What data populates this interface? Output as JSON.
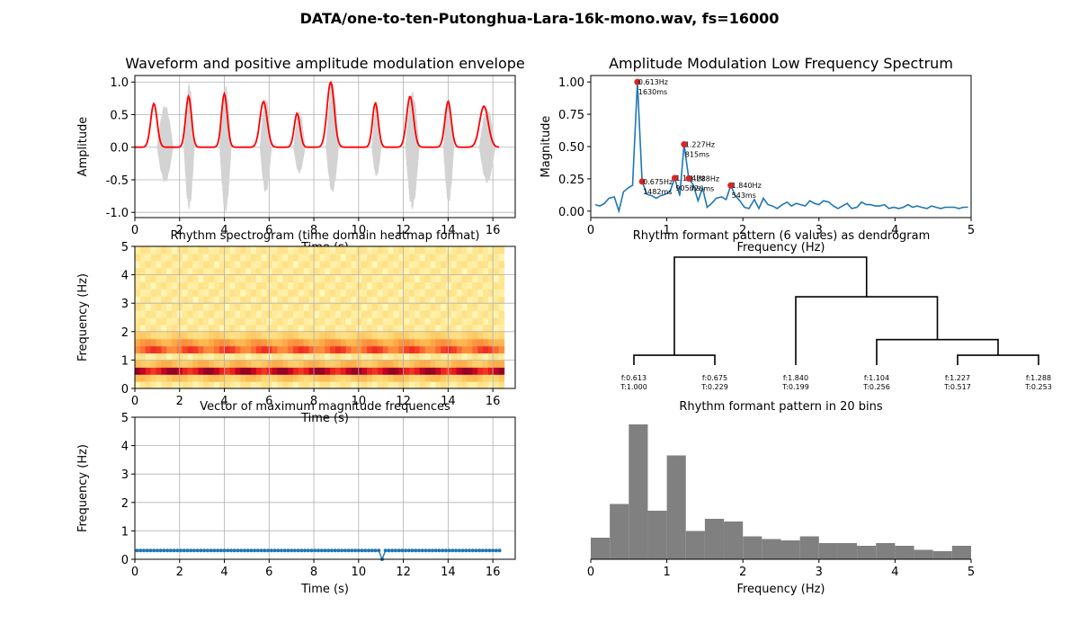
{
  "suptitle": "DATA/one-to-ten-Putonghua-Lara-16k-mono.wav, fs=16000",
  "chart_data": [
    {
      "id": "waveform",
      "type": "line",
      "title": "Waveform and positive amplitude modulation envelope",
      "xlabel": "Time (s)",
      "ylabel": "Amplitude",
      "xlim": [
        0,
        17
      ],
      "ylim": [
        -1.08,
        1.1
      ],
      "xticks": [
        0,
        2,
        4,
        6,
        8,
        10,
        12,
        14,
        16
      ],
      "yticks": [
        -1.0,
        -0.5,
        0.0,
        0.5,
        1.0
      ],
      "grid": true,
      "colors": {
        "waveform": "#d3d3d3",
        "envelope": "#ff0000"
      },
      "waveform_bursts": [
        {
          "start": 1.0,
          "end": 1.7,
          "pos": 0.65,
          "neg": -0.55
        },
        {
          "start": 2.2,
          "end": 2.65,
          "pos": 0.98,
          "neg": -0.95
        },
        {
          "start": 3.8,
          "end": 4.3,
          "pos": 0.95,
          "neg": -1.0
        },
        {
          "start": 5.6,
          "end": 6.1,
          "pos": 0.75,
          "neg": -0.7
        },
        {
          "start": 7.1,
          "end": 7.6,
          "pos": 0.55,
          "neg": -0.4
        },
        {
          "start": 8.55,
          "end": 9.1,
          "pos": 1.0,
          "neg": -0.7
        },
        {
          "start": 10.6,
          "end": 11.0,
          "pos": 0.65,
          "neg": -0.45
        },
        {
          "start": 12.1,
          "end": 12.7,
          "pos": 0.85,
          "neg": -0.95
        },
        {
          "start": 13.8,
          "end": 14.25,
          "pos": 0.75,
          "neg": -0.85
        },
        {
          "start": 15.4,
          "end": 16.1,
          "pos": 0.6,
          "neg": -0.55
        }
      ],
      "envelope_peaks": [
        {
          "t": 0.85,
          "amp": 0.67,
          "width": 0.22
        },
        {
          "t": 2.4,
          "amp": 0.78,
          "width": 0.2
        },
        {
          "t": 4.0,
          "amp": 0.82,
          "width": 0.2
        },
        {
          "t": 5.75,
          "amp": 0.7,
          "width": 0.25
        },
        {
          "t": 7.25,
          "amp": 0.52,
          "width": 0.2
        },
        {
          "t": 8.75,
          "amp": 1.0,
          "width": 0.25
        },
        {
          "t": 10.75,
          "amp": 0.68,
          "width": 0.2
        },
        {
          "t": 12.3,
          "amp": 0.78,
          "width": 0.24
        },
        {
          "t": 14.0,
          "amp": 0.7,
          "width": 0.22
        },
        {
          "t": 15.6,
          "amp": 0.63,
          "width": 0.3
        }
      ],
      "envelope_range": [
        0.0,
        16.3
      ]
    },
    {
      "id": "am-spectrum",
      "type": "line",
      "title": "Amplitude Modulation Low Frequency Spectrum",
      "xlabel": "Frequency (Hz)",
      "ylabel": "Magnitude",
      "xlim": [
        0,
        5
      ],
      "ylim": [
        -0.05,
        1.05
      ],
      "xticks": [
        0,
        1,
        2,
        3,
        4,
        5
      ],
      "yticks": [
        0.0,
        0.25,
        0.5,
        0.75,
        1.0
      ],
      "grid": false,
      "line_color": "#1f77b4",
      "marker_color": "#d62728",
      "x": [
        0.06,
        0.12,
        0.18,
        0.24,
        0.31,
        0.37,
        0.43,
        0.49,
        0.55,
        0.613,
        0.675,
        0.74,
        0.8,
        0.86,
        0.92,
        0.98,
        1.04,
        1.104,
        1.17,
        1.227,
        1.288,
        1.35,
        1.41,
        1.47,
        1.53,
        1.59,
        1.65,
        1.72,
        1.78,
        1.84,
        1.9,
        1.96,
        2.02,
        2.08,
        2.15,
        2.21,
        2.27,
        2.33,
        2.39,
        2.45,
        2.52,
        2.58,
        2.64,
        2.7,
        2.76,
        2.82,
        2.88,
        2.94,
        3.0,
        3.06,
        3.13,
        3.19,
        3.25,
        3.31,
        3.37,
        3.43,
        3.5,
        3.56,
        3.62,
        3.68,
        3.74,
        3.8,
        3.86,
        3.92,
        3.98,
        4.05,
        4.11,
        4.17,
        4.23,
        4.29,
        4.35,
        4.42,
        4.48,
        4.54,
        4.6,
        4.66,
        4.72,
        4.78,
        4.84,
        4.9,
        4.96
      ],
      "y": [
        0.05,
        0.04,
        0.06,
        0.1,
        0.11,
        0.0,
        0.15,
        0.18,
        0.2,
        1.0,
        0.229,
        0.13,
        0.12,
        0.1,
        0.12,
        0.13,
        0.15,
        0.256,
        0.12,
        0.517,
        0.253,
        0.2,
        0.08,
        0.18,
        0.03,
        0.06,
        0.1,
        0.11,
        0.09,
        0.199,
        0.12,
        0.08,
        0.03,
        0.02,
        0.09,
        0.02,
        0.1,
        0.05,
        0.04,
        0.02,
        0.05,
        0.07,
        0.04,
        0.06,
        0.05,
        0.04,
        0.08,
        0.06,
        0.05,
        0.08,
        0.07,
        0.04,
        0.02,
        0.04,
        0.06,
        0.02,
        0.03,
        0.07,
        0.05,
        0.05,
        0.04,
        0.04,
        0.05,
        0.02,
        0.03,
        0.02,
        0.03,
        0.05,
        0.03,
        0.04,
        0.03,
        0.02,
        0.04,
        0.03,
        0.02,
        0.03,
        0.03,
        0.03,
        0.02,
        0.03,
        0.03
      ],
      "peaks": [
        {
          "f": 0.613,
          "mag": 1.0,
          "freq_label": "0.613Hz",
          "period_label": "1630ms",
          "lx": 0,
          "ly": 0
        },
        {
          "f": 1.227,
          "mag": 0.517,
          "freq_label": "1.227Hz",
          "period_label": "815ms",
          "lx": 0,
          "ly": 0
        },
        {
          "f": 0.675,
          "mag": 0.229,
          "freq_label": "0.675Hz",
          "period_label": "1482ms",
          "lx": 0,
          "ly": 0
        },
        {
          "f": 1.104,
          "mag": 0.256,
          "freq_label": "1.104Hz",
          "period_label": "905ms",
          "lx": 0,
          "ly": 0
        },
        {
          "f": 1.288,
          "mag": 0.253,
          "freq_label": "1.288Hz",
          "period_label": "776ms",
          "lx": 0,
          "ly": 0
        },
        {
          "f": 1.84,
          "mag": 0.199,
          "freq_label": "1.840Hz",
          "period_label": "543ms",
          "lx": 0,
          "ly": 0
        }
      ]
    },
    {
      "id": "rhythm-spectrogram",
      "type": "heatmap",
      "title": "Rhythm spectrogram (time domain heatmap format)",
      "xlabel": "Time (s)",
      "ylabel": "Frequency (Hz)",
      "xlim": [
        0,
        17
      ],
      "ylim": [
        0,
        5
      ],
      "xticks": [
        0,
        2,
        4,
        6,
        8,
        10,
        12,
        14,
        16
      ],
      "yticks": [
        0,
        1,
        2,
        3,
        4,
        5
      ],
      "grid": true,
      "colormap": "YlOrRd",
      "time_extent": [
        0,
        16.5
      ],
      "frequency_bands": [
        {
          "low": 0.5,
          "high": 0.75,
          "intensity": 0.97
        },
        {
          "low": 1.25,
          "high": 1.5,
          "intensity": 0.7
        },
        {
          "low": 0.75,
          "high": 1.0,
          "intensity": 0.4
        },
        {
          "low": 1.5,
          "high": 1.75,
          "intensity": 0.5
        },
        {
          "low": 0.25,
          "high": 0.5,
          "intensity": 0.35
        },
        {
          "low": 1.75,
          "high": 2.0,
          "intensity": 0.3
        }
      ]
    },
    {
      "id": "dendrogram",
      "type": "dendrogram",
      "title": "Rhythm formant pattern (6 values) as dendrogram",
      "leaves": [
        {
          "f": "f:0.613",
          "t": "T:1.000"
        },
        {
          "f": "f:0.675",
          "t": "T:0.229"
        },
        {
          "f": "f:1.840",
          "t": "T:0.199"
        },
        {
          "f": "f:1.104",
          "t": "T:0.256"
        },
        {
          "f": "f:1.227",
          "t": "T:0.517"
        },
        {
          "f": "f:1.288",
          "t": "T:0.253"
        }
      ],
      "merges": [
        [
          0,
          1
        ],
        [
          4,
          5
        ],
        [
          3,
          7
        ],
        [
          2,
          8
        ],
        [
          6,
          9
        ]
      ],
      "merge_heights": [
        0.06,
        0.06,
        0.21,
        0.62,
        1.0
      ]
    },
    {
      "id": "max-freq-vector",
      "type": "line",
      "title": "Vector of maximum magnitude frequences",
      "xlabel": "Time (s)",
      "ylabel": "Frequency (Hz)",
      "xlim": [
        0,
        17
      ],
      "ylim": [
        0,
        5
      ],
      "xticks": [
        0,
        2,
        4,
        6,
        8,
        10,
        12,
        14,
        16
      ],
      "yticks": [
        0,
        1,
        2,
        3,
        4,
        5
      ],
      "grid": true,
      "line_color": "#1f77b4",
      "baseline": 0.31,
      "t_start": 0.1,
      "t_end": 16.3,
      "t_step": 0.15,
      "dip": {
        "t": 11.1,
        "value": 0.0
      }
    },
    {
      "id": "histogram",
      "type": "bar",
      "title": "Rhythm formant pattern in 20 bins",
      "xlabel": "Frequency (Hz)",
      "xlim": [
        0,
        5
      ],
      "xticks": [
        0,
        1,
        2,
        3,
        4,
        5
      ],
      "color": "#808080",
      "bin_edges": [
        0.0,
        0.25,
        0.5,
        0.75,
        1.0,
        1.25,
        1.5,
        1.75,
        2.0,
        2.25,
        2.5,
        2.75,
        3.0,
        3.25,
        3.5,
        3.75,
        4.0,
        4.25,
        4.5,
        4.75,
        5.0
      ],
      "values": [
        0.16,
        0.41,
        1.0,
        0.36,
        0.77,
        0.21,
        0.3,
        0.28,
        0.17,
        0.15,
        0.14,
        0.17,
        0.12,
        0.12,
        0.1,
        0.12,
        0.1,
        0.07,
        0.06,
        0.1
      ]
    }
  ]
}
